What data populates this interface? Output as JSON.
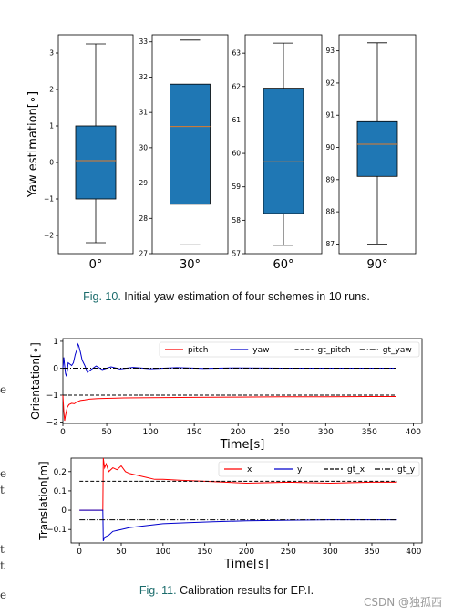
{
  "fig10": {
    "caption_number": "Fig. 10.",
    "caption_text": "Initial yaw estimation of four schemes in 10 runs.",
    "chart_data": {
      "type": "box",
      "ylabel": "Yaw estimation[∘]",
      "categories": [
        "0°",
        "30°",
        "60°",
        "90°"
      ],
      "boxes": [
        {
          "name": "0°",
          "whisker_low": -2.2,
          "q1": -1.0,
          "median": 0.05,
          "q3": 1.0,
          "whisker_high": 3.25,
          "ylim": [
            -2.5,
            3.5
          ],
          "yticks": [
            -2,
            -1,
            0,
            1,
            2,
            3
          ]
        },
        {
          "name": "30°",
          "whisker_low": 27.25,
          "q1": 28.4,
          "median": 30.6,
          "q3": 31.8,
          "whisker_high": 33.05,
          "ylim": [
            27.0,
            33.2
          ],
          "yticks": [
            27,
            28,
            29,
            30,
            31,
            32,
            33
          ]
        },
        {
          "name": "60°",
          "whisker_low": 57.25,
          "q1": 58.2,
          "median": 59.75,
          "q3": 61.95,
          "whisker_high": 63.3,
          "ylim": [
            57.0,
            63.55
          ],
          "yticks": [
            57,
            58,
            59,
            60,
            61,
            62,
            63
          ]
        },
        {
          "name": "90°",
          "whisker_low": 87.0,
          "q1": 89.1,
          "median": 90.1,
          "q3": 90.8,
          "whisker_high": 93.25,
          "ylim": [
            86.7,
            93.5
          ],
          "yticks": [
            87,
            88,
            89,
            90,
            91,
            92,
            93
          ]
        }
      ],
      "colors": {
        "box": "#1f77b4",
        "median": "#e07b2a"
      }
    }
  },
  "fig11": {
    "caption_number": "Fig. 11.",
    "caption_text": "Calibration results for EP.I.",
    "chart_data": [
      {
        "type": "line",
        "ylabel": "Orientation[∘]",
        "xlabel": "Time[s]",
        "xlim": [
          0,
          410
        ],
        "ylim": [
          -2.05,
          1.1
        ],
        "xticks": [
          0,
          50,
          100,
          150,
          200,
          250,
          300,
          350,
          400
        ],
        "yticks": [
          -2,
          -1,
          0,
          1
        ],
        "legend": "top-right",
        "series": [
          {
            "name": "pitch",
            "color": "#ff0000",
            "style": "solid",
            "x": [
              0,
              1,
              2,
              3,
              5,
              7,
              10,
              13,
              16,
              20,
              25,
              30,
              40,
              50,
              70,
              100,
              150,
              200,
              250,
              300,
              350,
              380
            ],
            "y": [
              -1.0,
              -1.6,
              -1.95,
              -1.75,
              -1.45,
              -1.35,
              -1.3,
              -1.32,
              -1.25,
              -1.2,
              -1.18,
              -1.15,
              -1.13,
              -1.12,
              -1.1,
              -1.09,
              -1.08,
              -1.07,
              -1.06,
              -1.06,
              -1.05,
              -1.05
            ]
          },
          {
            "name": "yaw",
            "color": "#0000cc",
            "style": "solid",
            "x": [
              0,
              1,
              2,
              3,
              4,
              5,
              6,
              8,
              10,
              12,
              14,
              16,
              17,
              18,
              20,
              22,
              25,
              28,
              32,
              38,
              45,
              55,
              65,
              80,
              100,
              130,
              160,
              200,
              250,
              300,
              350,
              380
            ],
            "y": [
              0.0,
              0.4,
              0.1,
              -0.2,
              -0.3,
              -0.1,
              0.2,
              0.15,
              0.1,
              0.2,
              0.5,
              0.7,
              0.9,
              0.85,
              0.6,
              0.3,
              0.1,
              -0.15,
              -0.05,
              0.08,
              -0.05,
              0.05,
              -0.03,
              0.03,
              -0.02,
              0.02,
              -0.01,
              0.01,
              0.0,
              0.0,
              0.0,
              0.0
            ]
          },
          {
            "name": "gt_pitch",
            "color": "#000000",
            "style": "dashed",
            "x": [
              0,
              380
            ],
            "y": [
              -1.0,
              -1.0
            ]
          },
          {
            "name": "gt_yaw",
            "color": "#000000",
            "style": "dashdot",
            "x": [
              0,
              380
            ],
            "y": [
              0.0,
              0.0
            ]
          }
        ]
      },
      {
        "type": "line",
        "ylabel": "Translation[m]",
        "xlabel": "Time[s]",
        "xlim": [
          -10,
          410
        ],
        "ylim": [
          -0.17,
          0.27
        ],
        "xticks": [
          0,
          50,
          100,
          150,
          200,
          250,
          300,
          350,
          400
        ],
        "yticks": [
          -0.1,
          0.0,
          0.1,
          0.2
        ],
        "legend": "top-right",
        "series": [
          {
            "name": "x",
            "color": "#ff0000",
            "style": "solid",
            "x": [
              0,
              28,
              28.5,
              30,
              32,
              35,
              40,
              45,
              50,
              55,
              60,
              70,
              80,
              90,
              100,
              120,
              150,
              200,
              250,
              300,
              350,
              380
            ],
            "y": [
              0.0,
              0.0,
              0.27,
              0.22,
              0.24,
              0.2,
              0.22,
              0.21,
              0.23,
              0.2,
              0.19,
              0.18,
              0.17,
              0.16,
              0.16,
              0.155,
              0.15,
              0.14,
              0.145,
              0.14,
              0.145,
              0.145
            ]
          },
          {
            "name": "y",
            "color": "#0000cc",
            "style": "solid",
            "x": [
              0,
              28,
              28.5,
              30,
              35,
              40,
              50,
              60,
              80,
              100,
              130,
              160,
              200,
              250,
              300,
              380
            ],
            "y": [
              0.0,
              0.0,
              -0.16,
              -0.14,
              -0.13,
              -0.11,
              -0.1,
              -0.09,
              -0.08,
              -0.07,
              -0.065,
              -0.06,
              -0.055,
              -0.052,
              -0.05,
              -0.05
            ]
          },
          {
            "name": "gt_x",
            "color": "#000000",
            "style": "dashed",
            "x": [
              0,
              380
            ],
            "y": [
              0.15,
              0.15
            ]
          },
          {
            "name": "gt_y",
            "color": "#000000",
            "style": "dashdot",
            "x": [
              0,
              380
            ],
            "y": [
              -0.05,
              -0.05
            ]
          }
        ]
      }
    ]
  },
  "margin_fragments": [
    "e",
    "e",
    "t",
    "t",
    "t",
    "e"
  ],
  "watermark": "CSDN @独孤西"
}
